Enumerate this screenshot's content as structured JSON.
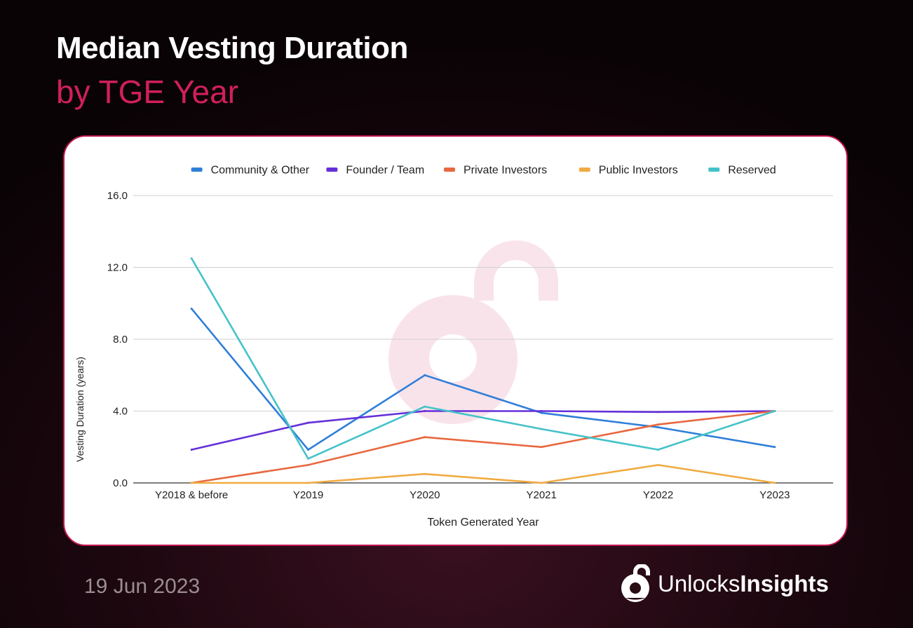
{
  "header": {
    "title": "Median Vesting Duration",
    "subtitle": "by TGE Year"
  },
  "footer": {
    "date": "19 Jun 2023",
    "brand_light": "Unlocks",
    "brand_bold": "Insights"
  },
  "chart_data": {
    "type": "line",
    "xlabel": "Token Generated Year",
    "ylabel": "Vesting Duration (years)",
    "categories": [
      "Y2018 & before",
      "Y2019",
      "Y2020",
      "Y2021",
      "Y2022",
      "Y2023"
    ],
    "ylim": [
      0,
      16
    ],
    "yticks": [
      "0.0",
      "4.0",
      "8.0",
      "12.0",
      "16.0"
    ],
    "ytick_values": [
      0,
      4,
      8,
      12,
      16
    ],
    "grid": true,
    "legend_position": "top",
    "series": [
      {
        "name": "Community & Other",
        "color": "#2f7fd9",
        "values": [
          9.7,
          1.85,
          6.0,
          3.9,
          3.1,
          2.0
        ]
      },
      {
        "name": "Founder / Team",
        "color": "#6530d9",
        "values": [
          1.85,
          3.35,
          4.0,
          4.0,
          3.95,
          4.0
        ]
      },
      {
        "name": "Private Investors",
        "color": "#e8683f",
        "values": [
          0.0,
          1.0,
          2.55,
          2.0,
          3.25,
          4.0
        ]
      },
      {
        "name": "Public Investors",
        "color": "#f0ab42",
        "values": [
          0.0,
          0.0,
          0.5,
          0.0,
          1.0,
          0.0
        ]
      },
      {
        "name": "Reserved",
        "color": "#45c2c9",
        "values": [
          12.5,
          1.35,
          4.25,
          3.0,
          1.85,
          4.0
        ]
      }
    ]
  }
}
